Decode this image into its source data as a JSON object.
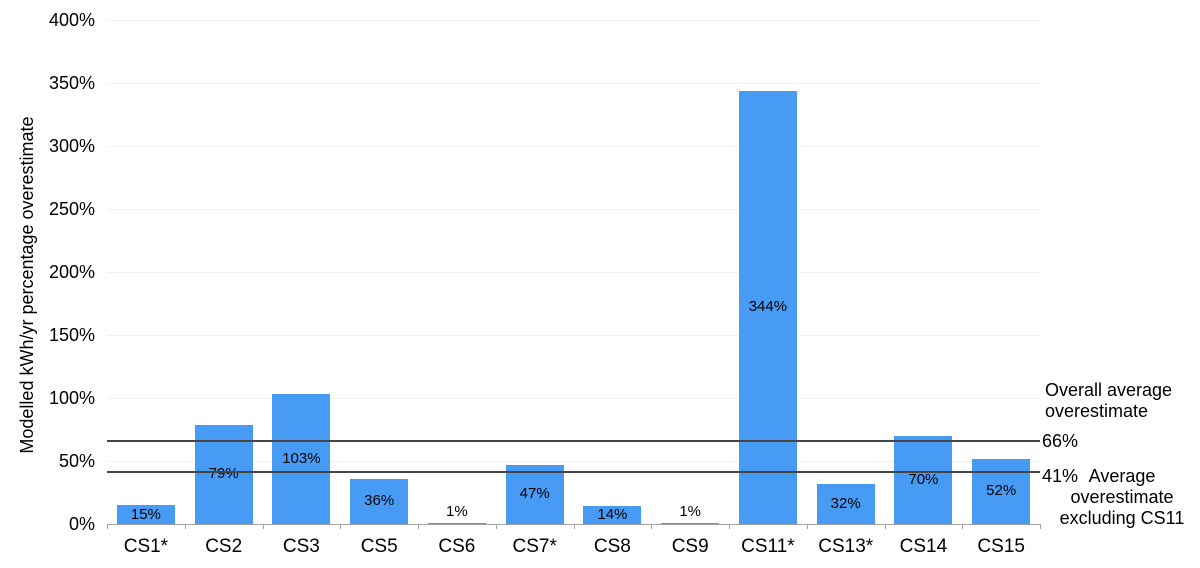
{
  "chart_data": {
    "type": "bar",
    "title": "",
    "xlabel": "",
    "ylabel": "Modelled kWh/yr percentage overestimate",
    "ylim": [
      0,
      400
    ],
    "yticks": {
      "step": 50,
      "labels": [
        "0%",
        "50%",
        "100%",
        "150%",
        "200%",
        "250%",
        "300%",
        "350%",
        "400%"
      ]
    },
    "categories": [
      "CS1*",
      "CS2",
      "CS3",
      "CS5",
      "CS6",
      "CS7*",
      "CS8",
      "CS9",
      "CS11*",
      "CS13*",
      "CS14",
      "CS15"
    ],
    "values": [
      15,
      79,
      103,
      36,
      1,
      47,
      14,
      1,
      344,
      32,
      70,
      52
    ],
    "value_label_suffix": "%",
    "bar_color": "#489BF5",
    "grid": true,
    "legend": false,
    "reference_lines": [
      {
        "value": 66,
        "value_label": "66%",
        "annotation": "Overall average overestimate"
      },
      {
        "value": 41,
        "value_label": "41%",
        "annotation": "Average overestimate excluding CS11"
      }
    ]
  }
}
